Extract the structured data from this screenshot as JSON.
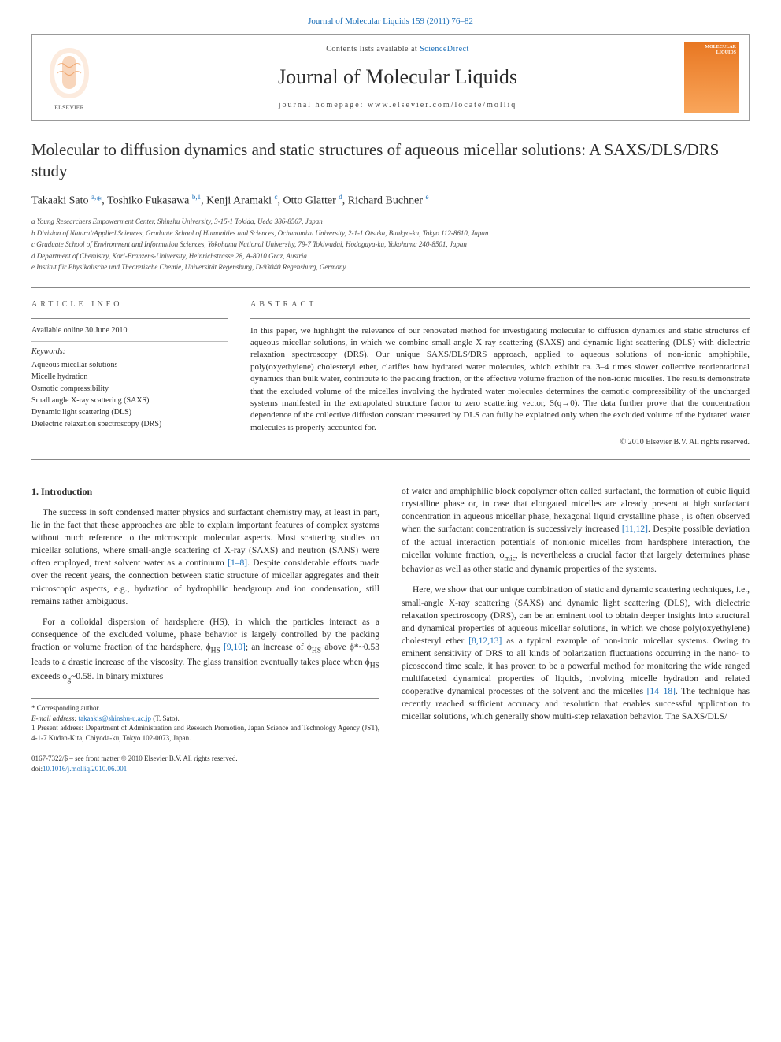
{
  "top_citation": "Journal of Molecular Liquids 159 (2011) 76–82",
  "masthead": {
    "contents_prefix": "Contents lists available at ",
    "contents_link": "ScienceDirect",
    "journal_name": "Journal of Molecular Liquids",
    "homepage": "journal homepage: www.elsevier.com/locate/molliq",
    "cover_text": "MOLECULAR LIQUIDS"
  },
  "article": {
    "title": "Molecular to diffusion dynamics and static structures of aqueous micellar solutions: A SAXS/DLS/DRS study",
    "authors_html": "Takaaki Sato <sup>a,</sup><span class='corr'>*</span>, Toshiko Fukasawa <sup>b,1</sup>, Kenji Aramaki <sup>c</sup>, Otto Glatter <sup>d</sup>, Richard Buchner <sup>e</sup>",
    "affiliations": [
      "a Young Researchers Empowerment Center, Shinshu University, 3-15-1 Tokida, Ueda 386-8567, Japan",
      "b Division of Natural/Applied Sciences, Graduate School of Humanities and Sciences, Ochanomizu University, 2-1-1 Otsuka, Bunkyo-ku, Tokyo 112-8610, Japan",
      "c Graduate School of Environment and Information Sciences, Yokohama National University, 79-7 Tokiwadai, Hodogaya-ku, Yokohama 240-8501, Japan",
      "d Department of Chemistry, Karl-Franzens-University, Heinrichstrasse 28, A-8010 Graz, Austria",
      "e Institut für Physikalische und Theoretische Chemie, Universität Regensburg, D-93040 Regensburg, Germany"
    ]
  },
  "info": {
    "heading": "ARTICLE INFO",
    "available": "Available online 30 June 2010",
    "keywords_label": "Keywords:",
    "keywords": [
      "Aqueous micellar solutions",
      "Micelle hydration",
      "Osmotic compressibility",
      "Small angle X-ray scattering (SAXS)",
      "Dynamic light scattering (DLS)",
      "Dielectric relaxation spectroscopy (DRS)"
    ]
  },
  "abstract": {
    "heading": "ABSTRACT",
    "text": "In this paper, we highlight the relevance of our renovated method for investigating molecular to diffusion dynamics and static structures of aqueous micellar solutions, in which we combine small-angle X-ray scattering (SAXS) and dynamic light scattering (DLS) with dielectric relaxation spectroscopy (DRS). Our unique SAXS/DLS/DRS approach, applied to aqueous solutions of non-ionic amphiphile, poly(oxyethylene) cholesteryl ether, clarifies how hydrated water molecules, which exhibit ca. 3–4 times slower collective reorientational dynamics than bulk water, contribute to the packing fraction, or the effective volume fraction of the non-ionic micelles. The results demonstrate that the excluded volume of the micelles involving the hydrated water molecules determines the osmotic compressibility of the uncharged systems manifested in the extrapolated structure factor to zero scattering vector, S(q→0). The data further prove that the concentration dependence of the collective diffusion constant measured by DLS can fully be explained only when the excluded volume of the hydrated water molecules is properly accounted for.",
    "copyright": "© 2010 Elsevier B.V. All rights reserved."
  },
  "body": {
    "heading": "1. Introduction",
    "col1_p1": "The success in soft condensed matter physics and surfactant chemistry may, at least in part, lie in the fact that these approaches are able to explain important features of complex systems without much reference to the microscopic molecular aspects. Most scattering studies on micellar solutions, where small-angle scattering of X-ray (SAXS) and neutron (SANS) were often employed, treat solvent water as a continuum [1–8]. Despite considerable efforts made over the recent years, the connection between static structure of micellar aggregates and their microscopic aspects, e.g., hydration of hydrophilic headgroup and ion condensation, still remains rather ambiguous.",
    "col1_p2": "For a colloidal dispersion of hardsphere (HS), in which the particles interact as a consequence of the excluded volume, phase behavior is largely controlled by the packing fraction or volume fraction of the hardsphere, ϕHS [9,10]; an increase of ϕHS above ϕ*~0.53 leads to a drastic increase of the viscosity. The glass transition eventually takes place when ϕHS exceeds ϕg~0.58. In binary mixtures",
    "col2_p1": "of water and amphiphilic block copolymer often called surfactant, the formation of cubic liquid crystalline phase or, in case that elongated micelles are already present at high surfactant concentration in aqueous micellar phase, hexagonal liquid crystalline phase , is often observed when the surfactant concentration is successively increased [11,12]. Despite possible deviation of the actual interaction potentials of nonionic micelles from hardsphere interaction, the micellar volume fraction, ϕmic, is nevertheless a crucial factor that largely determines phase behavior as well as other static and dynamic properties of the systems.",
    "col2_p2": "Here, we show that our unique combination of static and dynamic scattering techniques, i.e., small-angle X-ray scattering (SAXS) and dynamic light scattering (DLS), with dielectric relaxation spectroscopy (DRS), can be an eminent tool to obtain deeper insights into structural and dynamical properties of aqueous micellar solutions, in which we chose poly(oxyethylene) cholesteryl ether [8,12,13] as a typical example of non-ionic micellar systems. Owing to eminent sensitivity of DRS to all kinds of polarization fluctuations occurring in the nano- to picosecond time scale, it has proven to be a powerful method for monitoring the wide ranged multifaceted dynamical properties of liquids, involving micelle hydration and related cooperative dynamical processes of the solvent and the micelles [14–18]. The technique has recently reached sufficient accuracy and resolution that enables successful application to micellar solutions, which generally show multi-step relaxation behavior. The SAXS/DLS/"
  },
  "footnotes": {
    "corr": "* Corresponding author.",
    "email_label": "E-mail address: ",
    "email": "takaakis@shinshu-u.ac.jp",
    "email_suffix": " (T. Sato).",
    "present": "1 Present address: Department of Administration and Research Promotion, Japan Science and Technology Agency (JST), 4-1-7 Kudan-Kita, Chiyoda-ku, Tokyo 102-0073, Japan."
  },
  "front_matter": {
    "line1": "0167-7322/$ – see front matter © 2010 Elsevier B.V. All rights reserved.",
    "doi_label": "doi:",
    "doi": "10.1016/j.molliq.2010.06.001"
  },
  "colors": {
    "link": "#1a6eb8",
    "text": "#2d2d2d",
    "border": "#888888",
    "cover_start": "#e87722",
    "cover_end": "#f9a55a"
  }
}
